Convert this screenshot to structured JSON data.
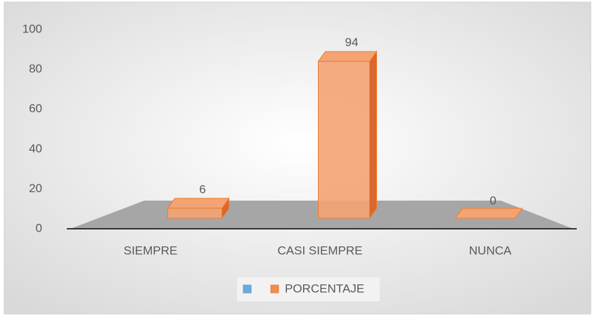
{
  "chart_data": {
    "type": "bar3d",
    "categories": [
      "SIEMPRE",
      "CASI SIEMPRE",
      "NUNCA"
    ],
    "series": [
      {
        "color": "#5b9bd5",
        "values": [
          null,
          null,
          null
        ]
      },
      {
        "name": "PORCENTAJE",
        "color": "#ed7d31",
        "values": [
          6,
          94,
          0
        ]
      }
    ],
    "ylim": [
      0,
      100
    ],
    "yticks": [
      0,
      20,
      40,
      60,
      80,
      100
    ],
    "legend": "bottom"
  }
}
